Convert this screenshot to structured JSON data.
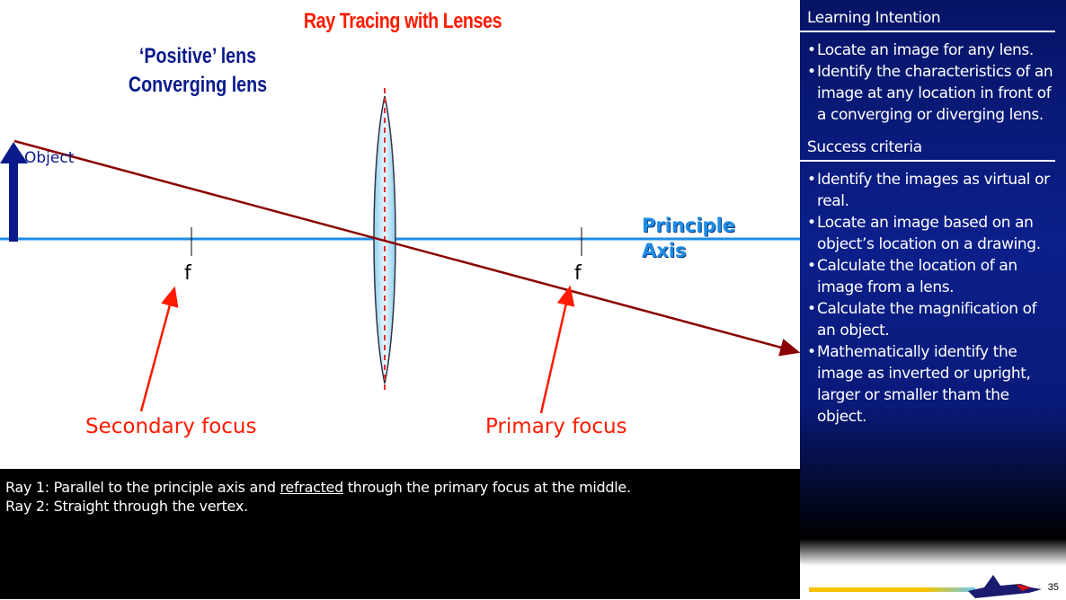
{
  "slide": {
    "title": "Ray Tracing with Lenses",
    "subtitle_line1": "‘Positive’ lens",
    "subtitle_line2": "Converging lens",
    "object_label": "Object",
    "focus_left_label": "f",
    "focus_right_label": "f",
    "axis_label_line1": "Principle",
    "axis_label_line2": "Axis",
    "secondary_focus_label": "Secondary focus",
    "primary_focus_label": "Primary focus"
  },
  "colors": {
    "title": "#ff1a00",
    "subtitle": "#0a1a8a",
    "axis": "#1e8ce6",
    "ray": "#8b0000",
    "lens_fill": "#bfe6f5",
    "panel": "#0a1a7a",
    "annotation": "#ff1a00"
  },
  "notes": {
    "ray1_prefix": "Ray 1: Parallel to the principle axis and ",
    "ray1_link": "refracted",
    "ray1_suffix": " through the primary focus at the middle.",
    "ray2": "Ray 2: Straight through the vertex."
  },
  "panel": {
    "learning_heading": "Learning Intention",
    "learning_items": [
      "Locate an image for any lens.",
      "Identify the characteristics of an image at any location in front of a converging or diverging lens."
    ],
    "success_heading": "Success criteria",
    "success_items": [
      "Identify the images as virtual or real.",
      "Locate an image based on an object’s location on a drawing.",
      "Calculate the location of an image from a lens.",
      "Calculate the magnification of an object.",
      "Mathematically identify the image as inverted or upright, larger or smaller tham the object."
    ]
  },
  "footer": {
    "page_number": "35"
  }
}
